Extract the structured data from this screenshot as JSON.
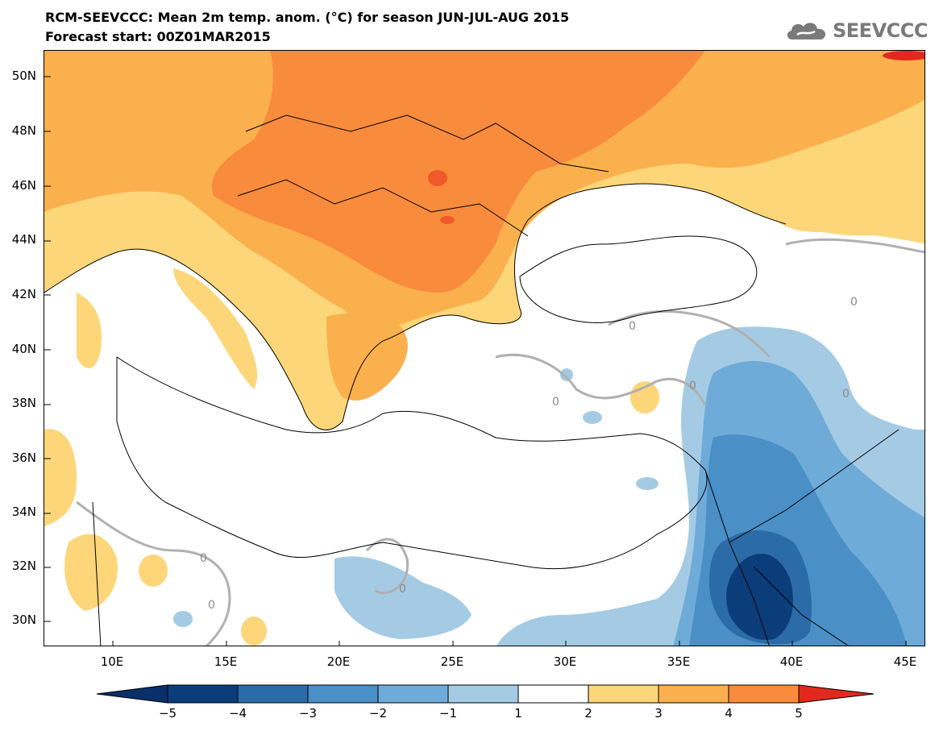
{
  "header": {
    "line1": "RCM-SEEVCCC: Mean 2m temp. anom. (°C) for season JUN-JUL-AUG 2015",
    "line2": "Forecast start: 00Z01MAR2015",
    "logo_text": "SEEVCCC",
    "logo_icon": "cloud-icon"
  },
  "axes": {
    "lat_labels": [
      "50N",
      "48N",
      "46N",
      "44N",
      "42N",
      "40N",
      "38N",
      "36N",
      "34N",
      "32N",
      "30N"
    ],
    "lon_labels": [
      "10E",
      "15E",
      "20E",
      "25E",
      "30E",
      "35E",
      "40E",
      "45E"
    ]
  },
  "contour_label": "0",
  "colorbar": {
    "ticks": [
      "−5",
      "−4",
      "−3",
      "−2",
      "−1",
      "1",
      "2",
      "3",
      "4",
      "5"
    ],
    "colors": {
      "below_min": "#08306b",
      "c1": "#0b3d7a",
      "c2": "#2b6ba8",
      "c3": "#4a8fc6",
      "c4": "#6fabd8",
      "c5": "#a5cbe4",
      "c6": "#ffffff",
      "c7": "#fdd67a",
      "c8": "#fbb04e",
      "c9": "#f98b3c",
      "c10": "#f05a2a",
      "above_max": "#e3281e"
    }
  }
}
